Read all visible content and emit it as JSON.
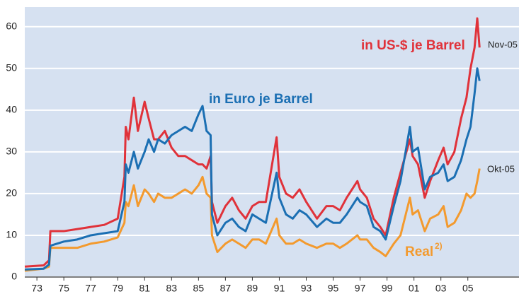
{
  "chart_data": {
    "type": "line",
    "x": [
      1972.1,
      1973.5,
      1973.9,
      1974.0,
      1975,
      1976,
      1977,
      1978,
      1979,
      1979.5,
      1979.6,
      1979.8,
      1980.2,
      1980.5,
      1981,
      1981.3,
      1981.7,
      1982,
      1982.5,
      1983,
      1983.5,
      1984,
      1984.5,
      1985,
      1985.3,
      1985.6,
      1985.9,
      1986.0,
      1986.4,
      1987,
      1987.5,
      1988,
      1988.5,
      1989,
      1989.5,
      1990,
      1990.8,
      1991,
      1991.5,
      1992,
      1992.5,
      1993,
      1993.8,
      1994.5,
      1995,
      1995.5,
      1996,
      1996.8,
      1997,
      1997.5,
      1998,
      1998.5,
      1998.9,
      1999.5,
      2000,
      2000.7,
      2000.9,
      2001.3,
      2001.8,
      2002.2,
      2002.8,
      2003.2,
      2003.5,
      2004,
      2004.5,
      2004.9,
      2005.2,
      2005.5,
      2005.7,
      2005.87
    ],
    "series": [
      {
        "name": "in US-$ je Barrel",
        "color": "#e0323a",
        "values": [
          2.5,
          2.8,
          4,
          11,
          11,
          11.5,
          12,
          12.5,
          14,
          24,
          36,
          33,
          43,
          35,
          42,
          38,
          33,
          33,
          35,
          31,
          29,
          29,
          28,
          27,
          27,
          26,
          29,
          18,
          13,
          17,
          19,
          16,
          14,
          17,
          18,
          18,
          33.5,
          24,
          20,
          19,
          21,
          18,
          14,
          17,
          17,
          16,
          19,
          23,
          21,
          19,
          14,
          12,
          10,
          19,
          25,
          33,
          29,
          27,
          19,
          23,
          28,
          31,
          27,
          30,
          38,
          43,
          50,
          55,
          62,
          55
        ]
      },
      {
        "name": "in Euro je Barrel",
        "color": "#1b6fb3",
        "values": [
          1.8,
          2,
          3,
          7.5,
          8.5,
          9,
          10,
          10.5,
          11,
          18,
          27,
          25,
          30,
          26,
          30,
          33,
          30,
          33,
          32,
          34,
          35,
          36,
          35,
          39,
          41,
          35,
          34,
          15,
          10,
          13,
          14,
          12,
          11,
          15,
          14,
          13,
          25,
          19,
          15,
          14,
          16,
          15,
          12,
          14,
          13,
          13,
          15,
          19,
          18,
          17,
          12,
          11,
          9,
          17,
          23,
          36,
          30,
          31,
          21,
          24,
          25,
          27,
          23,
          24,
          28,
          33,
          36,
          44,
          50,
          47
        ]
      },
      {
        "name": "Real",
        "color": "#f39a2e",
        "values": [
          1.5,
          2,
          2.5,
          7,
          7,
          7,
          8,
          8.5,
          9.5,
          13,
          18,
          17,
          22,
          17,
          21,
          20,
          18,
          20,
          19,
          19,
          20,
          21,
          20,
          22,
          24,
          20,
          19,
          10,
          6,
          8,
          9,
          8,
          7,
          9,
          9,
          8,
          14,
          10,
          8,
          8,
          9,
          8,
          7,
          8,
          8,
          7,
          8,
          10,
          9,
          9,
          7,
          6,
          5,
          8,
          10,
          19,
          15,
          16,
          11,
          14,
          15,
          17,
          12,
          13,
          16,
          20,
          19,
          20,
          23,
          26
        ]
      }
    ],
    "annotations": [
      "Nov-05",
      "Okt-05",
      "2)"
    ],
    "xlim": [
      1972.1,
      2008.8
    ],
    "xticks": [
      {
        "value": 1973,
        "label": "73"
      },
      {
        "value": 1975,
        "label": "75"
      },
      {
        "value": 1977,
        "label": "77"
      },
      {
        "value": 1979,
        "label": "79"
      },
      {
        "value": 1981,
        "label": "81"
      },
      {
        "value": 1983,
        "label": "83"
      },
      {
        "value": 1985,
        "label": "85"
      },
      {
        "value": 1987,
        "label": "87"
      },
      {
        "value": 1989,
        "label": "89"
      },
      {
        "value": 1991,
        "label": "91"
      },
      {
        "value": 1993,
        "label": "93"
      },
      {
        "value": 1995,
        "label": "95"
      },
      {
        "value": 1997,
        "label": "97"
      },
      {
        "value": 1999,
        "label": "99"
      },
      {
        "value": 2001,
        "label": "01"
      },
      {
        "value": 2003,
        "label": "03"
      },
      {
        "value": 2005,
        "label": "05"
      }
    ],
    "ylim": [
      0,
      64.7
    ],
    "yticks": [
      0,
      10,
      20,
      30,
      40,
      50,
      60
    ],
    "grid": true
  }
}
